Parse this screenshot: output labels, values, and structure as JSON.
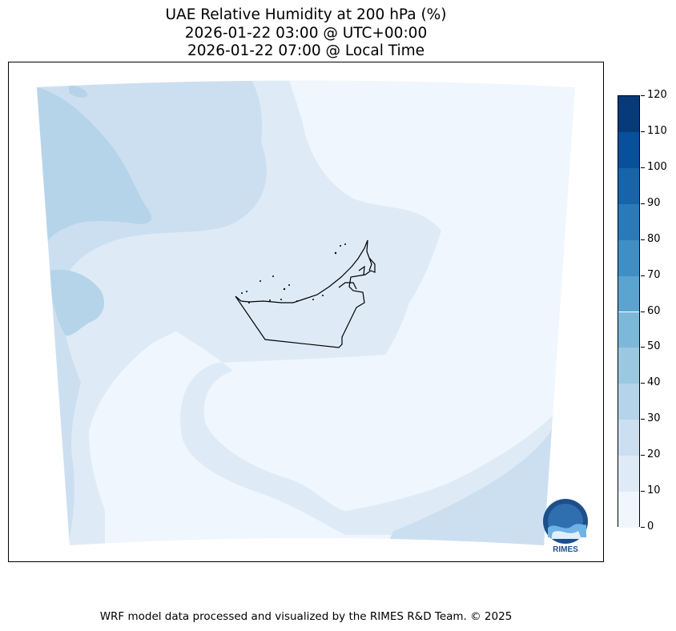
{
  "title": {
    "line1": "UAE Relative Humidity at 200 hPa (%)",
    "line2": "2026-01-22 03:00 @ UTC+00:00",
    "line3": "2026-01-22 07:00 @ Local Time"
  },
  "colorbar": {
    "ticks": [
      "0",
      "10",
      "20",
      "30",
      "40",
      "50",
      "60",
      "70",
      "80",
      "90",
      "100",
      "110",
      "120"
    ],
    "colors": [
      "#f0f6fd",
      "#deebf7",
      "#ccdff1",
      "#b5d4e9",
      "#9ac8e0",
      "#7db8da",
      "#5ca4d0",
      "#3f8fc5",
      "#2a7aba",
      "#1764ab",
      "#08509b",
      "#083a7a"
    ]
  },
  "logo": {
    "text": "RIMES"
  },
  "footer": "WRF model data processed and visualized by the RIMES R&D Team. © 2025"
}
